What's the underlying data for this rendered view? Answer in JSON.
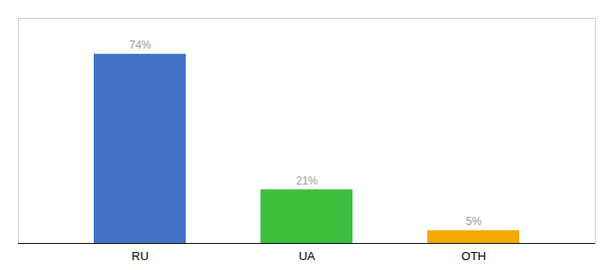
{
  "chart_data": {
    "type": "bar",
    "categories": [
      "RU",
      "UA",
      "OTH"
    ],
    "values": [
      74,
      21,
      5
    ],
    "value_labels": [
      "74%",
      "21%",
      "5%"
    ],
    "colors": [
      "#4472c4",
      "#3dbf3d",
      "#f5a800"
    ],
    "ylim": [
      0,
      88
    ],
    "data_labels": true,
    "tick_labels": "x"
  }
}
